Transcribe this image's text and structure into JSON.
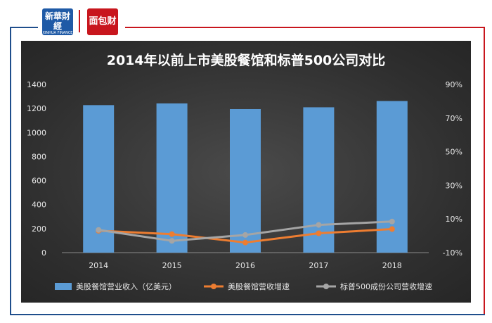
{
  "logos": {
    "xinhua_cn": "新華財經",
    "xinhua_en": "XINHUA FINANCE",
    "caijing": "面包财经"
  },
  "colors": {
    "bar": "#5b9bd5",
    "series_orange": "#ed7d31",
    "series_gray": "#a5a5a5",
    "frame_blue": "#1f4e8c",
    "frame_red": "#c8161d"
  },
  "chart_data": {
    "type": "bar",
    "title": "2014年以前上市美股餐馆和标普500公司对比",
    "categories": [
      "2014",
      "2015",
      "2016",
      "2017",
      "2018"
    ],
    "y_left": {
      "range": [
        0,
        1400
      ],
      "ticks": [
        "0",
        "200",
        "400",
        "600",
        "800",
        "1000",
        "1200",
        "1400"
      ]
    },
    "y_right": {
      "range": [
        -10,
        90
      ],
      "ticks": [
        "-10%",
        "10%",
        "30%",
        "50%",
        "70%",
        "90%"
      ]
    },
    "series": [
      {
        "name": "美股餐馆营业收入（亿美元）",
        "kind": "bar",
        "axis": "left",
        "values": [
          1228,
          1242,
          1195,
          1210,
          1262
        ]
      },
      {
        "name": "美股餐馆营收增速",
        "kind": "line",
        "axis": "right",
        "values": [
          3.0,
          1.0,
          -4.0,
          1.5,
          4.0
        ]
      },
      {
        "name": "标普500成份公司营收增速",
        "kind": "line",
        "axis": "right",
        "values": [
          3.5,
          -3.0,
          0.5,
          6.5,
          8.5
        ]
      }
    ],
    "legend_position": "bottom",
    "grid": false
  }
}
